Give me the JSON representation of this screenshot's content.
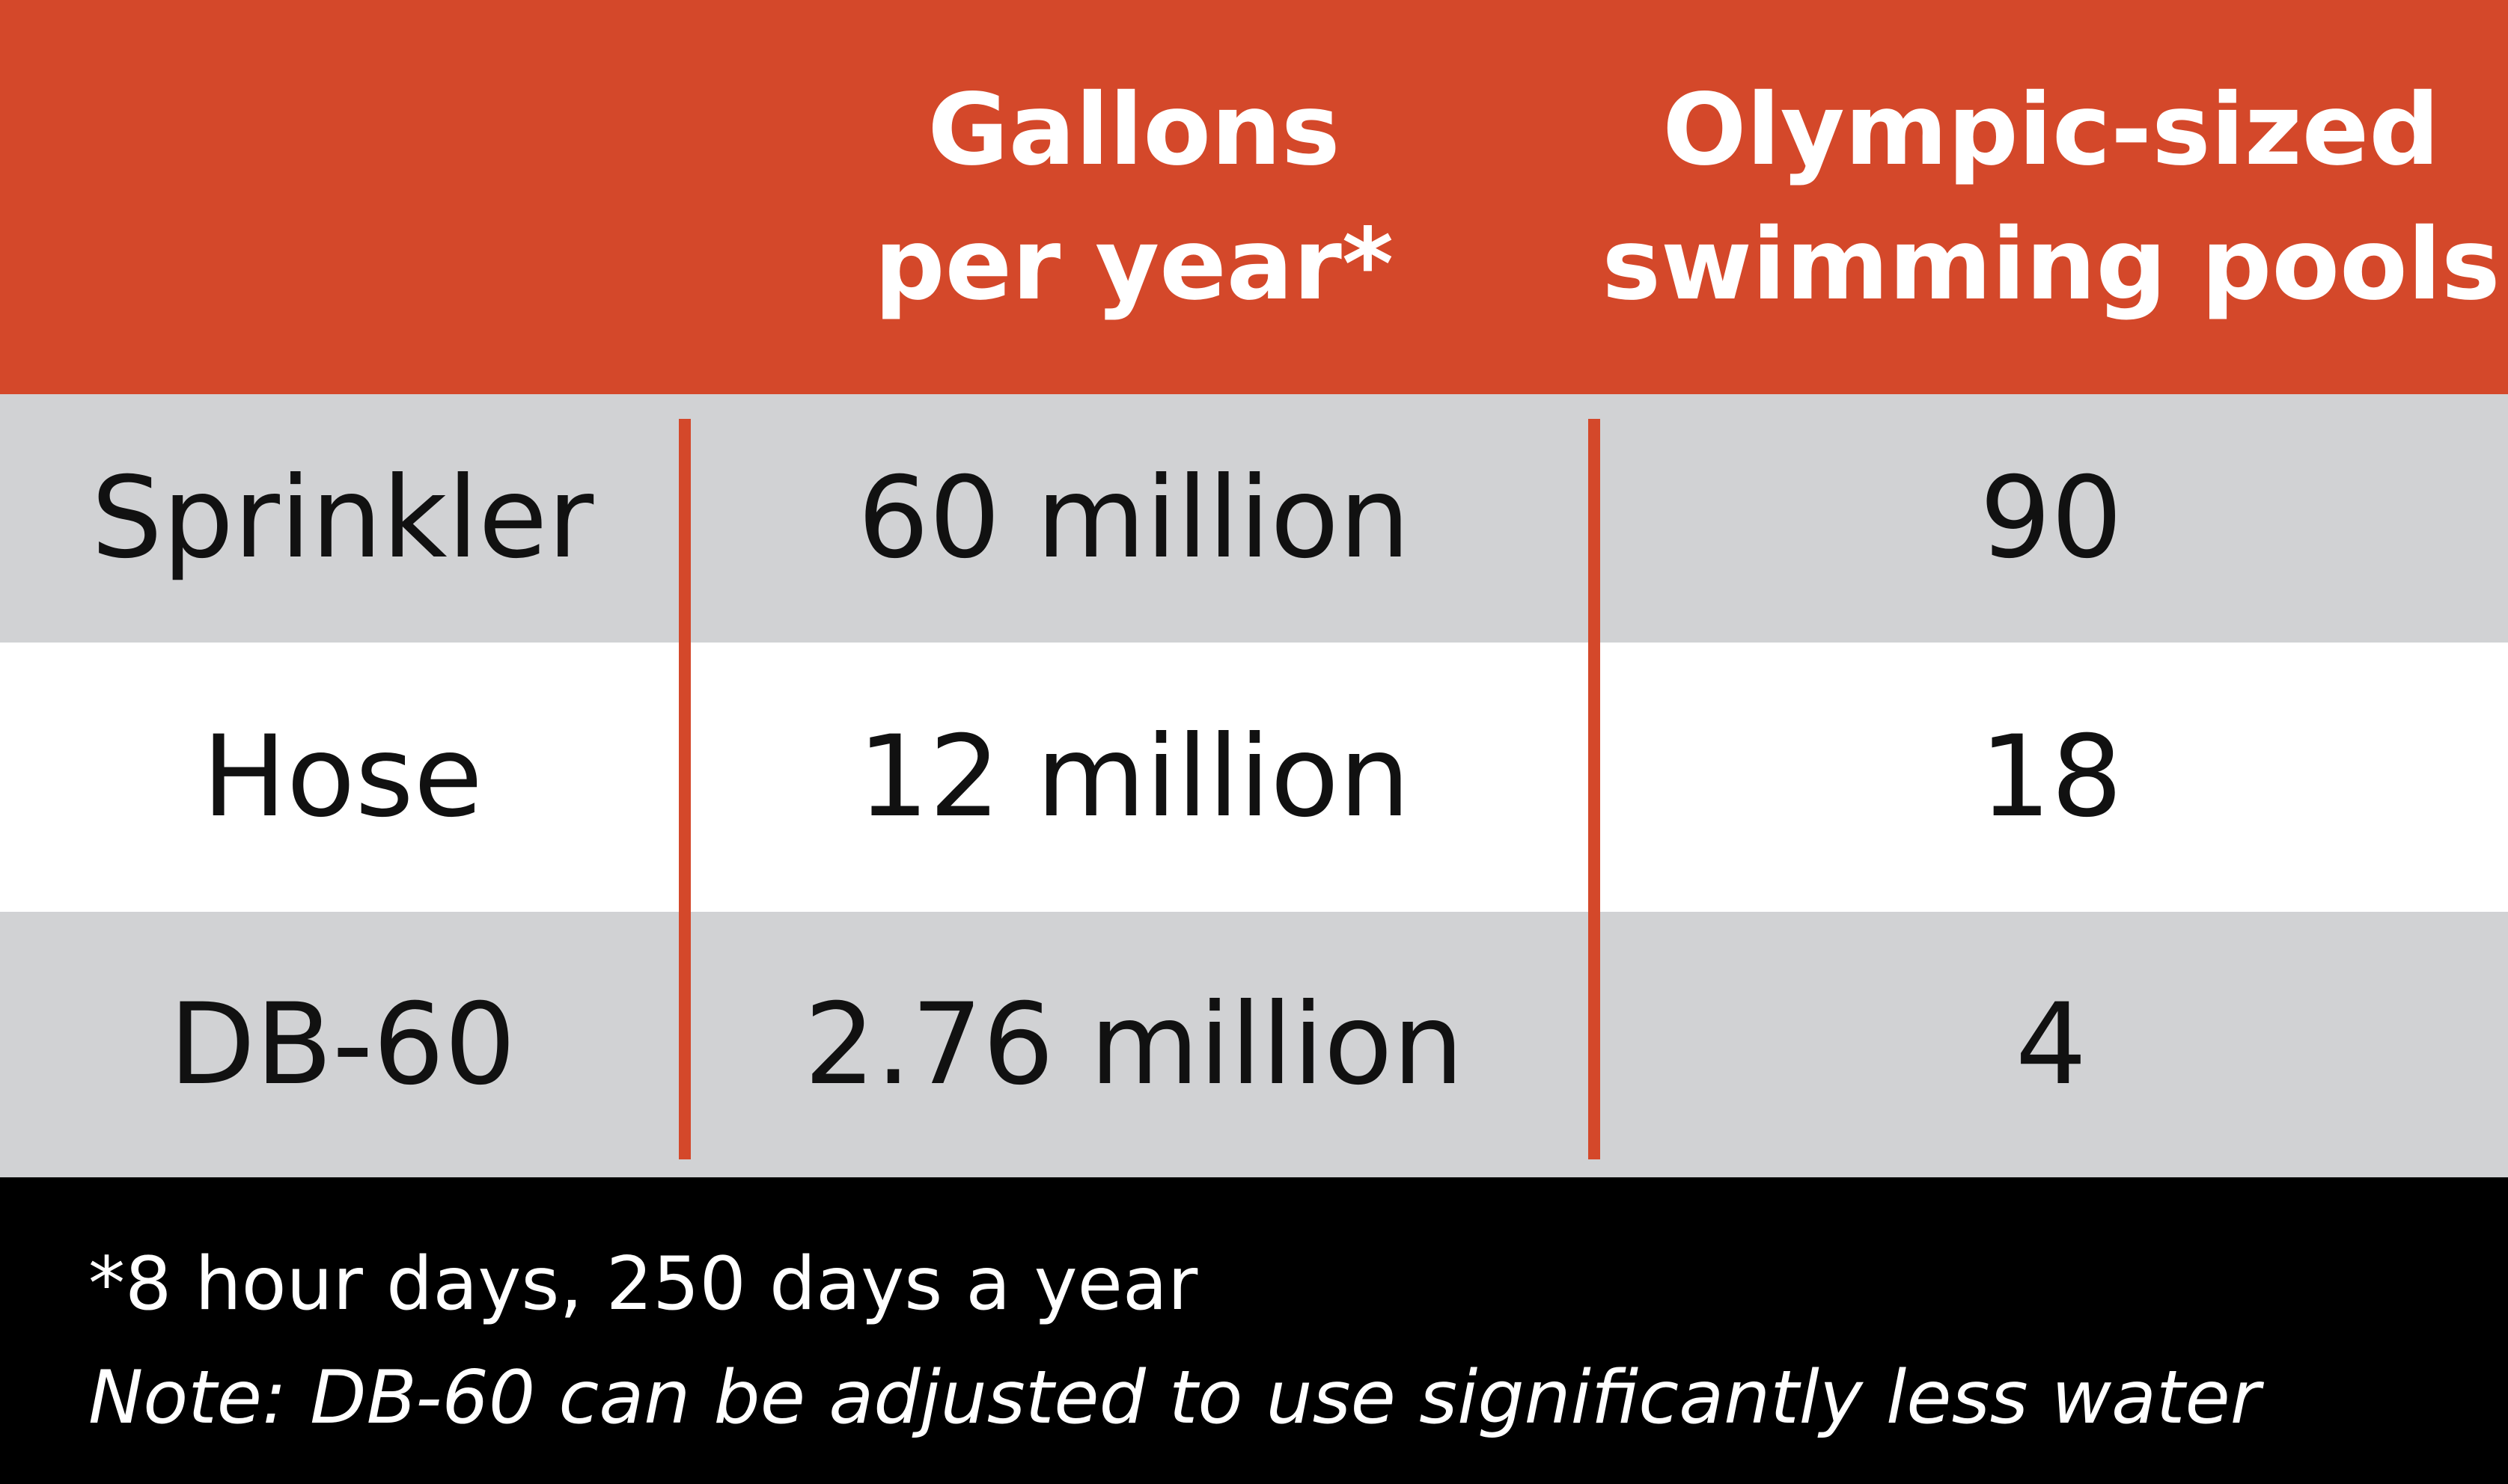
{
  "colors": {
    "header_bg": "#d4482a",
    "row_gray": "#d1d2d4",
    "row_white": "#ffffff",
    "divider": "#d4482a",
    "footer_bg": "#000000"
  },
  "chart_data": {
    "type": "table",
    "columns": [
      "",
      "Gallons per year*",
      "Olympic-sized swimming pools"
    ],
    "header": {
      "gallons_line1": "Gallons",
      "gallons_line2": "per year*",
      "pools_line1": "Olympic-sized",
      "pools_line2": "swimming pools"
    },
    "rows": [
      {
        "label": "Sprinkler",
        "gallons": "60 million",
        "pools": "90"
      },
      {
        "label": "Hose",
        "gallons": "12 million",
        "pools": "18"
      },
      {
        "label": "DB-60",
        "gallons": "2.76 million",
        "pools": "4"
      }
    ],
    "footnote": "*8 hour days, 250 days a year",
    "note": "Note: DB-60 can be adjusted to use significantly less water"
  }
}
